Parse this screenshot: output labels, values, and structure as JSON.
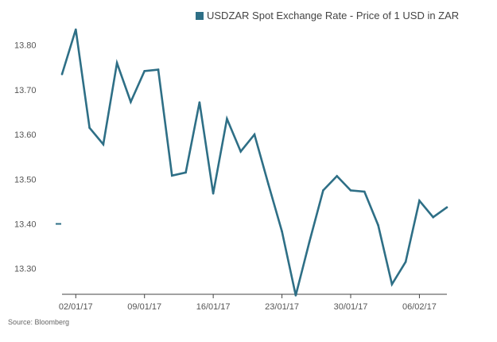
{
  "chart_data": {
    "type": "line",
    "legend": {
      "label": "USDZAR Spot Exchange Rate - Price of 1 USD in ZAR",
      "position": "top"
    },
    "series": [
      {
        "name": "USDZAR Spot Exchange Rate - Price of 1 USD in ZAR",
        "color": "#2e6f86",
        "x": [
          "30/12/16",
          "02/01/17",
          "03/01/17",
          "04/01/17",
          "05/01/17",
          "06/01/17",
          "09/01/17",
          "10/01/17",
          "11/01/17",
          "12/01/17",
          "13/01/17",
          "16/01/17",
          "17/01/17",
          "18/01/17",
          "19/01/17",
          "20/01/17",
          "23/01/17",
          "24/01/17",
          "25/01/17",
          "26/01/17",
          "27/01/17",
          "30/01/17",
          "31/01/17",
          "01/02/17",
          "02/02/17",
          "03/02/17",
          "06/02/17",
          "07/02/17",
          "08/02/17"
        ],
        "values": [
          13.735,
          13.835,
          13.615,
          13.578,
          13.76,
          13.673,
          13.742,
          13.745,
          13.508,
          13.515,
          13.672,
          13.468,
          13.635,
          13.562,
          13.6,
          13.49,
          13.383,
          13.24,
          13.36,
          13.475,
          13.507,
          13.475,
          13.472,
          13.397,
          13.265,
          13.315,
          13.452,
          13.415,
          13.437
        ]
      }
    ],
    "x_tick_labels": [
      "02/01/17",
      "09/01/17",
      "16/01/17",
      "23/01/17",
      "30/01/17",
      "06/02/17"
    ],
    "y_tick_labels": [
      "13.30",
      "13.40",
      "13.50",
      "13.60",
      "13.70",
      "13.80"
    ],
    "ylim": [
      13.24,
      13.85
    ],
    "grid": false,
    "source": "Source: Bloomberg"
  }
}
